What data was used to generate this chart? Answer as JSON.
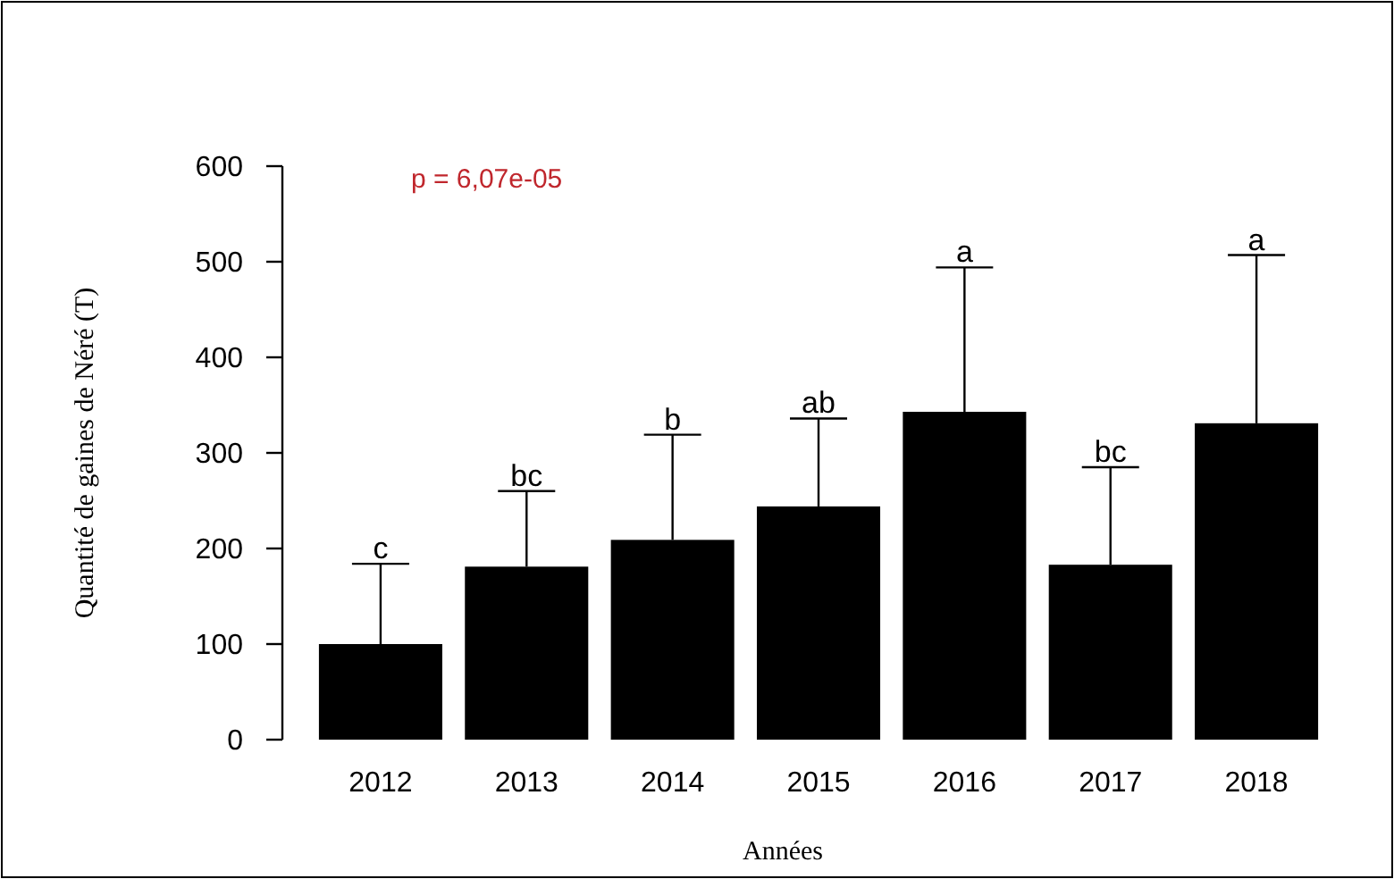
{
  "chart_data": {
    "type": "bar",
    "xlabel": "Années",
    "ylabel": "Quantité de gaines de Néré (T)",
    "categories": [
      "2012",
      "2013",
      "2014",
      "2015",
      "2016",
      "2017",
      "2018"
    ],
    "values": [
      100,
      181,
      209,
      244,
      343,
      183,
      331
    ],
    "errors": [
      [
        100,
        184
      ],
      [
        181,
        260
      ],
      [
        209,
        319
      ],
      [
        244,
        336
      ],
      [
        343,
        494
      ],
      [
        183,
        285
      ],
      [
        331,
        507
      ]
    ],
    "color": "#000000",
    "ylim": [
      0,
      600
    ],
    "yticks": [
      0,
      100,
      200,
      300,
      400,
      500,
      600
    ],
    "grid": false,
    "annotations": [
      "p = 6,07e-05",
      {
        "text": "c",
        "x": "2012",
        "y": 184
      },
      {
        "text": "bc",
        "x": "2013",
        "y": 260
      },
      {
        "text": "b",
        "x": "2014",
        "y": 319
      },
      {
        "text": "ab",
        "x": "2015",
        "y": 336
      },
      {
        "text": "a",
        "x": "2016",
        "y": 494
      },
      {
        "text": "bc",
        "x": "2017",
        "y": 285
      },
      {
        "text": "a",
        "x": "2018",
        "y": 507
      }
    ]
  }
}
